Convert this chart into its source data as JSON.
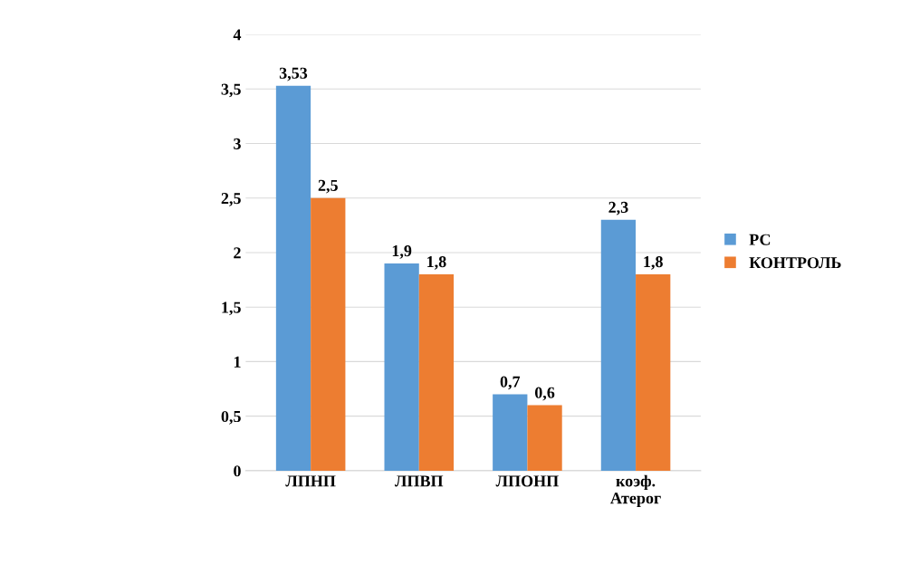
{
  "chart_data": {
    "type": "bar",
    "categories": [
      "ЛПНП",
      "ЛПВП",
      "ЛПОНП",
      "коэф.\nАтерог"
    ],
    "series": [
      {
        "name": "РС",
        "color": "#5b9bd5",
        "values": [
          3.53,
          1.9,
          0.7,
          2.3
        ],
        "value_labels": [
          "3,53",
          "1,9",
          "0,7",
          "2,3"
        ]
      },
      {
        "name": "КОНТРОЛЬ",
        "color": "#ed7d31",
        "values": [
          2.5,
          1.8,
          0.6,
          1.8
        ],
        "value_labels": [
          "2,5",
          "1,8",
          "0,6",
          "1,8"
        ]
      }
    ],
    "ylim": [
      0,
      4
    ],
    "yticks": [
      0,
      {
        "value": 0.5,
        "label": "0,5"
      },
      1,
      {
        "value": 1.5,
        "label": "1,5"
      },
      2,
      {
        "value": 2.5,
        "label": "2,5"
      },
      3,
      {
        "value": 3.5,
        "label": "3,5"
      },
      4
    ],
    "grid": "y",
    "legend": "right"
  }
}
